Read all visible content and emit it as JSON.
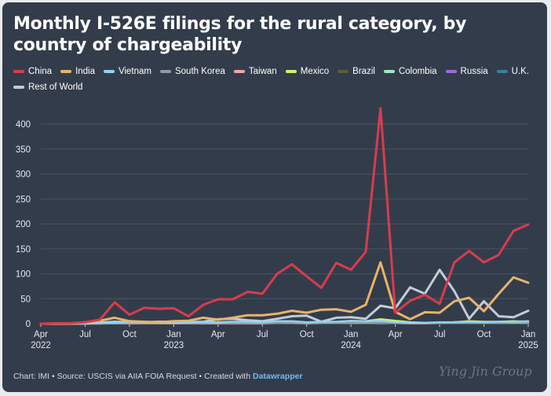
{
  "title": "Monthly I-526E filings for the rural category, by country of chargeability",
  "footer": {
    "text": "Chart: IMI • Source: USCIS via AIIA FOIA Request • Created with ",
    "brand": "Datawrapper"
  },
  "watermark": "Ying Jin Group",
  "chart_data": {
    "type": "line",
    "title": "Monthly I-526E filings for the rural category, by country of chargeability",
    "xlabel": "",
    "ylabel": "",
    "ylim": [
      0,
      430
    ],
    "yticks": [
      "0",
      "50",
      "100",
      "150",
      "200",
      "250",
      "300",
      "350",
      "400"
    ],
    "grid": true,
    "legend_position": "top",
    "x": [
      "2022-04",
      "2022-05",
      "2022-06",
      "2022-07",
      "2022-08",
      "2022-09",
      "2022-10",
      "2022-11",
      "2022-12",
      "2023-01",
      "2023-02",
      "2023-03",
      "2023-04",
      "2023-05",
      "2023-06",
      "2023-07",
      "2023-08",
      "2023-09",
      "2023-10",
      "2023-11",
      "2023-12",
      "2024-01",
      "2024-02",
      "2024-03",
      "2024-04",
      "2024-05",
      "2024-06",
      "2024-07",
      "2024-08",
      "2024-09",
      "2024-10",
      "2024-11",
      "2024-12",
      "2025-01"
    ],
    "xticks": [
      {
        "month": "Apr",
        "year": "2022",
        "index": 0
      },
      {
        "month": "Jul",
        "year": "",
        "index": 3
      },
      {
        "month": "Oct",
        "year": "",
        "index": 6
      },
      {
        "month": "Jan",
        "year": "2023",
        "index": 9
      },
      {
        "month": "Apr",
        "year": "",
        "index": 12
      },
      {
        "month": "Jul",
        "year": "",
        "index": 15
      },
      {
        "month": "Oct",
        "year": "",
        "index": 18
      },
      {
        "month": "Jan",
        "year": "2024",
        "index": 21
      },
      {
        "month": "Apr",
        "year": "",
        "index": 24
      },
      {
        "month": "Jul",
        "year": "",
        "index": 27
      },
      {
        "month": "Oct",
        "year": "",
        "index": 30
      },
      {
        "month": "Jan",
        "year": "2025",
        "index": 33
      }
    ],
    "series": [
      {
        "name": "China",
        "color": "#d63d4e",
        "values": [
          0,
          1,
          1,
          3,
          8,
          43,
          18,
          32,
          30,
          31,
          15,
          38,
          49,
          49,
          64,
          60,
          100,
          119,
          95,
          72,
          122,
          108,
          144,
          432,
          22,
          46,
          58,
          40,
          123,
          146,
          123,
          138,
          186,
          199
        ]
      },
      {
        "name": "India",
        "color": "#e8b36c",
        "values": [
          0,
          0,
          0,
          3,
          6,
          12,
          5,
          4,
          3,
          5,
          6,
          12,
          8,
          12,
          17,
          17,
          20,
          26,
          22,
          28,
          29,
          24,
          38,
          123,
          24,
          9,
          23,
          22,
          45,
          52,
          25,
          60,
          93,
          82
        ]
      },
      {
        "name": "Vietnam",
        "color": "#8ed4f0",
        "values": [
          0,
          0,
          0,
          1,
          1,
          2,
          3,
          2,
          2,
          2,
          2,
          3,
          3,
          4,
          4,
          3,
          5,
          5,
          3,
          4,
          4,
          6,
          5,
          6,
          3,
          2,
          2,
          3,
          3,
          4,
          3,
          4,
          4,
          5
        ]
      },
      {
        "name": "South Korea",
        "color": "#8f98a3",
        "values": [
          0,
          0,
          0,
          1,
          1,
          1,
          2,
          1,
          1,
          2,
          1,
          2,
          3,
          2,
          2,
          2,
          2,
          3,
          2,
          3,
          2,
          3,
          3,
          4,
          2,
          2,
          2,
          2,
          2,
          2,
          2,
          2,
          3,
          3
        ]
      },
      {
        "name": "Taiwan",
        "color": "#f1a3a9",
        "values": [
          0,
          0,
          0,
          0,
          1,
          1,
          1,
          1,
          1,
          1,
          1,
          1,
          1,
          1,
          1,
          1,
          2,
          2,
          1,
          2,
          2,
          2,
          2,
          3,
          2,
          1,
          1,
          2,
          2,
          2,
          2,
          2,
          2,
          2
        ]
      },
      {
        "name": "Mexico",
        "color": "#d4f06a",
        "values": [
          0,
          0,
          0,
          1,
          1,
          2,
          2,
          2,
          1,
          2,
          2,
          2,
          2,
          3,
          2,
          2,
          2,
          3,
          2,
          3,
          3,
          4,
          5,
          9,
          6,
          3,
          2,
          2,
          3,
          5,
          4,
          4,
          5,
          4
        ]
      },
      {
        "name": "Brazil",
        "color": "#5c5e3a",
        "values": [
          0,
          0,
          0,
          0,
          0,
          1,
          1,
          1,
          1,
          1,
          1,
          1,
          1,
          1,
          1,
          1,
          1,
          1,
          1,
          1,
          1,
          1,
          1,
          2,
          1,
          1,
          1,
          1,
          1,
          1,
          1,
          1,
          1,
          1
        ]
      },
      {
        "name": "Colombia",
        "color": "#9ce8c4",
        "values": [
          0,
          0,
          0,
          0,
          1,
          1,
          1,
          1,
          1,
          1,
          1,
          1,
          1,
          2,
          1,
          1,
          2,
          2,
          1,
          2,
          2,
          2,
          3,
          3,
          2,
          2,
          2,
          2,
          3,
          3,
          3,
          3,
          3,
          3
        ]
      },
      {
        "name": "Russia",
        "color": "#9a6dde",
        "values": [
          0,
          0,
          0,
          0,
          0,
          1,
          1,
          1,
          1,
          1,
          1,
          1,
          1,
          1,
          1,
          1,
          1,
          1,
          1,
          1,
          1,
          1,
          1,
          2,
          1,
          1,
          1,
          1,
          1,
          1,
          1,
          1,
          1,
          1
        ]
      },
      {
        "name": "U.K.",
        "color": "#3f7ea0",
        "values": [
          0,
          0,
          0,
          0,
          1,
          1,
          1,
          1,
          1,
          1,
          1,
          1,
          1,
          1,
          1,
          1,
          1,
          1,
          1,
          1,
          1,
          2,
          2,
          2,
          1,
          1,
          1,
          1,
          1,
          1,
          1,
          1,
          1,
          2
        ]
      },
      {
        "name": "Rest of World",
        "color": "#c3ccd6",
        "values": [
          0,
          0,
          0,
          1,
          2,
          4,
          3,
          3,
          4,
          4,
          3,
          4,
          9,
          10,
          7,
          5,
          10,
          15,
          16,
          4,
          12,
          13,
          10,
          36,
          31,
          73,
          60,
          108,
          65,
          10,
          45,
          15,
          13,
          26
        ]
      }
    ]
  }
}
